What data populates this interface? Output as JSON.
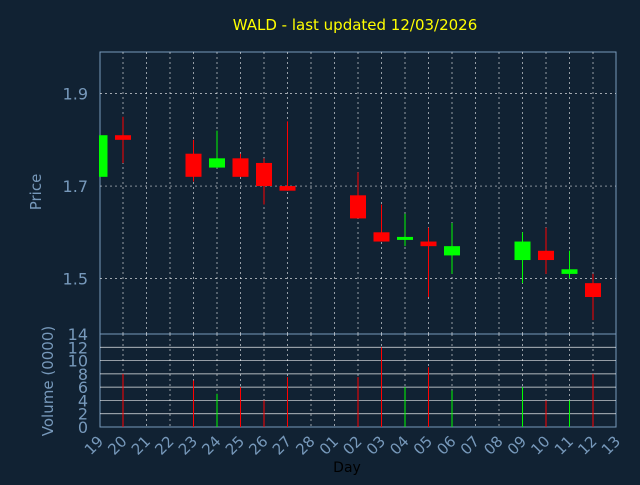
{
  "chart_data": {
    "type": "candlestick",
    "title": "WALD - last updated 12/03/2026",
    "xlabel": "Day",
    "price_ylabel": "Price",
    "volume_ylabel": "Volume (0000)",
    "x_ticks": [
      "19",
      "20",
      "21",
      "22",
      "23",
      "24",
      "25",
      "26",
      "27",
      "28",
      "01",
      "02",
      "03",
      "04",
      "05",
      "06",
      "07",
      "08",
      "09",
      "10",
      "11",
      "12",
      "13"
    ],
    "price_ticks": [
      "1.9",
      "1.7",
      "1.5"
    ],
    "volume_ticks": [
      "14",
      "12",
      "10",
      "8",
      "6",
      "4",
      "2",
      "0"
    ],
    "price_ylim": [
      1.38,
      1.99
    ],
    "volume_ylim": [
      0,
      14
    ],
    "grid": true,
    "colors": {
      "background": "#112233",
      "up": "#00ff00",
      "down": "#ff0000",
      "title": "#ffff00",
      "axis_text": "#7799bb",
      "grid": "#ffffff"
    },
    "candles": [
      {
        "day": "19",
        "open": 1.72,
        "high": 1.81,
        "low": 1.72,
        "close": 1.81,
        "volume": 0
      },
      {
        "day": "20",
        "open": 1.81,
        "high": 1.85,
        "low": 1.75,
        "close": 1.8,
        "volume": 8
      },
      {
        "day": "23",
        "open": 1.77,
        "high": 1.8,
        "low": 1.71,
        "close": 1.72,
        "volume": 7
      },
      {
        "day": "24",
        "open": 1.74,
        "high": 1.82,
        "low": 1.74,
        "close": 1.76,
        "volume": 5
      },
      {
        "day": "25",
        "open": 1.76,
        "high": 1.77,
        "low": 1.72,
        "close": 1.72,
        "volume": 6
      },
      {
        "day": "26",
        "open": 1.75,
        "high": 1.76,
        "low": 1.66,
        "close": 1.7,
        "volume": 4
      },
      {
        "day": "27",
        "open": 1.7,
        "high": 1.84,
        "low": 1.69,
        "close": 1.69,
        "volume": 7.5
      },
      {
        "day": "02",
        "open": 1.68,
        "high": 1.73,
        "low": 1.63,
        "close": 1.63,
        "volume": 7.5
      },
      {
        "day": "03",
        "open": 1.6,
        "high": 1.66,
        "low": 1.58,
        "close": 1.58,
        "volume": 12
      },
      {
        "day": "04",
        "open": 1.59,
        "high": 1.64,
        "low": 1.57,
        "close": 1.59,
        "volume": 6
      },
      {
        "day": "05",
        "open": 1.58,
        "high": 1.61,
        "low": 1.46,
        "close": 1.57,
        "volume": 9
      },
      {
        "day": "06",
        "open": 1.55,
        "high": 1.62,
        "low": 1.51,
        "close": 1.57,
        "volume": 5.5
      },
      {
        "day": "09",
        "open": 1.54,
        "high": 1.6,
        "low": 1.49,
        "close": 1.58,
        "volume": 6
      },
      {
        "day": "10",
        "open": 1.56,
        "high": 1.61,
        "low": 1.51,
        "close": 1.54,
        "volume": 4
      },
      {
        "day": "11",
        "open": 1.51,
        "high": 1.56,
        "low": 1.5,
        "close": 1.52,
        "volume": 4
      },
      {
        "day": "12",
        "open": 1.49,
        "high": 1.51,
        "low": 1.41,
        "close": 1.46,
        "volume": 8
      }
    ]
  }
}
